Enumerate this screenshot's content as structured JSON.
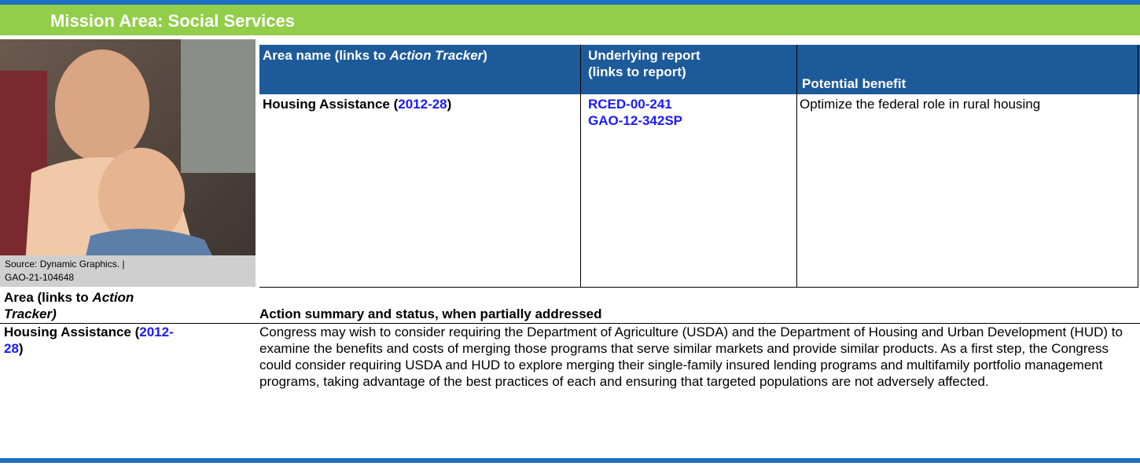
{
  "header": {
    "title": "Mission Area: Social Services"
  },
  "photo": {
    "caption": [
      "Source: Dynamic Graphics.  |",
      "GAO-21-104648"
    ]
  },
  "table": {
    "headers": [
      [
        "Area name (links to ",
        "Action Tracker",
        ")"
      ],
      [
        "Underlying report",
        "(links to report)"
      ],
      [
        "Potential benefit"
      ]
    ],
    "rows": [
      {
        "area": [
          "Housing Assistance (",
          "2012-28",
          ")"
        ],
        "reports": [
          "RCED-00-241",
          "GAO-12-342SP"
        ],
        "benefit": "Optimize the federal role in rural housing"
      }
    ]
  },
  "actions": {
    "headers": [
      [
        "Area (links to ",
        "Action",
        "Tracker)"
      ],
      "Action summary and status, when partially addressed"
    ],
    "rows": [
      {
        "area": [
          "Housing Assistance (",
          "2012-",
          "28",
          ")"
        ],
        "summary": "Congress may wish to consider requiring the Department of Agriculture (USDA) and the Department of Housing and Urban Development (HUD) to examine the benefits and costs of merging those programs that serve similar markets and provide similar products. As a first step, the Congress could consider requiring USDA and HUD to explore merging their single-family insured lending programs and multifamily portfolio management programs, taking advantage of the best practices of each and ensuring that targeted populations are not adversely affected."
      }
    ]
  }
}
